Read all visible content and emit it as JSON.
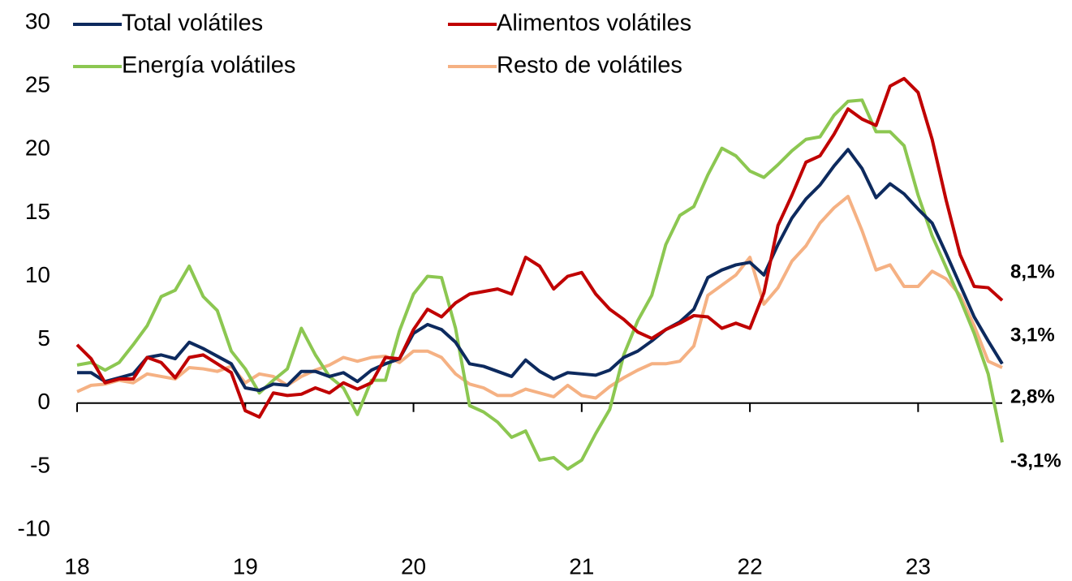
{
  "chart_data": {
    "type": "line",
    "categories": [
      "18",
      null,
      null,
      null,
      null,
      null,
      null,
      null,
      null,
      null,
      null,
      null,
      "19",
      null,
      null,
      null,
      null,
      null,
      null,
      null,
      null,
      null,
      null,
      null,
      "20",
      null,
      null,
      null,
      null,
      null,
      null,
      null,
      null,
      null,
      null,
      null,
      "21",
      null,
      null,
      null,
      null,
      null,
      null,
      null,
      null,
      null,
      null,
      null,
      "22",
      null,
      null,
      null,
      null,
      null,
      null,
      null,
      null,
      null,
      null,
      null,
      "23",
      null,
      null,
      null,
      null,
      null,
      null
    ],
    "ylim": [
      -10,
      30
    ],
    "yticks": [
      -10,
      -5,
      0,
      5,
      10,
      15,
      20,
      25,
      30
    ],
    "series": [
      {
        "name": "Total volátiles",
        "color": "#0d2a5e",
        "values": [
          2.4,
          2.4,
          1.7,
          2.0,
          2.3,
          3.6,
          3.8,
          3.5,
          4.8,
          4.3,
          3.7,
          3.1,
          1.2,
          1.0,
          1.5,
          1.4,
          2.5,
          2.5,
          2.1,
          2.4,
          1.7,
          2.6,
          3.1,
          3.5,
          5.5,
          6.2,
          5.8,
          4.8,
          3.1,
          2.9,
          2.5,
          2.1,
          3.4,
          2.5,
          1.9,
          2.4,
          2.3,
          2.2,
          2.6,
          3.6,
          4.1,
          4.9,
          5.8,
          6.4,
          7.4,
          9.9,
          10.5,
          10.9,
          11.1,
          10.1,
          12.5,
          14.6,
          16.1,
          17.2,
          18.7,
          20.0,
          18.5,
          16.2,
          17.3,
          16.5,
          15.3,
          14.2,
          11.8,
          9.3,
          6.8,
          4.9,
          3.1
        ],
        "value_labels": [
          null,
          null,
          null,
          null,
          null,
          null,
          null,
          null,
          null,
          null,
          null,
          null,
          null,
          null,
          null,
          null,
          null,
          null,
          null,
          null,
          null,
          null,
          null,
          null,
          null,
          null,
          null,
          null,
          null,
          null,
          null,
          null,
          null,
          null,
          null,
          null,
          null,
          null,
          null,
          null,
          null,
          null,
          null,
          null,
          null,
          null,
          null,
          null,
          null,
          null,
          null,
          null,
          null,
          null,
          null,
          null,
          null,
          null,
          null,
          null,
          null,
          null,
          null,
          null,
          null,
          null,
          "3,1%"
        ]
      },
      {
        "name": "Alimentos volátiles",
        "color": "#c00000",
        "values": [
          4.6,
          3.5,
          1.6,
          1.9,
          1.9,
          3.6,
          3.2,
          2.0,
          3.6,
          3.8,
          3.1,
          2.4,
          -0.6,
          -1.1,
          0.8,
          0.6,
          0.7,
          1.2,
          0.8,
          1.6,
          1.1,
          1.6,
          3.6,
          3.5,
          5.8,
          7.4,
          6.8,
          7.9,
          8.6,
          8.8,
          9.0,
          8.6,
          11.5,
          10.8,
          9.0,
          10.0,
          10.3,
          8.6,
          7.4,
          6.6,
          5.6,
          5.1,
          5.8,
          6.3,
          6.9,
          6.8,
          5.9,
          6.3,
          5.9,
          8.7,
          14.0,
          16.4,
          19.0,
          19.5,
          21.2,
          23.2,
          22.4,
          21.9,
          25.0,
          25.6,
          24.5,
          20.8,
          16.0,
          11.7,
          9.2,
          9.1,
          8.1
        ],
        "value_labels": [
          null,
          null,
          null,
          null,
          null,
          null,
          null,
          null,
          null,
          null,
          null,
          null,
          null,
          null,
          null,
          null,
          null,
          null,
          null,
          null,
          null,
          null,
          null,
          null,
          null,
          null,
          null,
          null,
          null,
          null,
          null,
          null,
          null,
          null,
          null,
          null,
          null,
          null,
          null,
          null,
          null,
          null,
          null,
          null,
          null,
          null,
          null,
          null,
          null,
          null,
          null,
          null,
          null,
          null,
          null,
          null,
          null,
          null,
          null,
          null,
          null,
          null,
          null,
          null,
          null,
          null,
          "8,1%"
        ]
      },
      {
        "name": "Energía volátiles",
        "color": "#8cc751",
        "values": [
          3.0,
          3.2,
          2.6,
          3.2,
          4.6,
          6.1,
          8.4,
          8.9,
          10.8,
          8.4,
          7.3,
          4.1,
          2.7,
          0.8,
          1.8,
          2.7,
          5.9,
          3.8,
          2.1,
          1.2,
          -0.9,
          1.8,
          1.8,
          5.7,
          8.6,
          10.0,
          9.9,
          5.9,
          -0.2,
          -0.7,
          -1.5,
          -2.7,
          -2.2,
          -4.5,
          -4.3,
          -5.2,
          -4.5,
          -2.4,
          -0.5,
          3.8,
          6.5,
          8.5,
          12.5,
          14.8,
          15.5,
          18.0,
          20.1,
          19.5,
          18.3,
          17.8,
          18.8,
          19.9,
          20.8,
          21.0,
          22.7,
          23.8,
          23.9,
          21.4,
          21.4,
          20.3,
          16.4,
          13.2,
          10.7,
          8.2,
          5.5,
          2.3,
          -3.1
        ],
        "value_labels": [
          null,
          null,
          null,
          null,
          null,
          null,
          null,
          null,
          null,
          null,
          null,
          null,
          null,
          null,
          null,
          null,
          null,
          null,
          null,
          null,
          null,
          null,
          null,
          null,
          null,
          null,
          null,
          null,
          null,
          null,
          null,
          null,
          null,
          null,
          null,
          null,
          null,
          null,
          null,
          null,
          null,
          null,
          null,
          null,
          null,
          null,
          null,
          null,
          null,
          null,
          null,
          null,
          null,
          null,
          null,
          null,
          null,
          null,
          null,
          null,
          null,
          null,
          null,
          null,
          null,
          null,
          "-3,1%"
        ]
      },
      {
        "name": "Resto de volátiles",
        "color": "#f5b183",
        "values": [
          0.9,
          1.4,
          1.5,
          1.8,
          1.6,
          2.3,
          2.1,
          1.9,
          2.8,
          2.7,
          2.5,
          2.9,
          1.6,
          2.3,
          2.1,
          1.4,
          2.1,
          2.6,
          3.0,
          3.6,
          3.3,
          3.6,
          3.7,
          3.2,
          4.1,
          4.1,
          3.6,
          2.3,
          1.5,
          1.2,
          0.6,
          0.6,
          1.1,
          0.8,
          0.5,
          1.4,
          0.6,
          0.4,
          1.3,
          2.0,
          2.6,
          3.1,
          3.1,
          3.3,
          4.5,
          8.5,
          9.3,
          10.1,
          11.5,
          7.8,
          9.1,
          11.2,
          12.4,
          14.2,
          15.4,
          16.3,
          13.6,
          10.5,
          10.9,
          9.2,
          9.2,
          10.4,
          9.8,
          8.5,
          6.1,
          3.3,
          2.8
        ],
        "value_labels": [
          null,
          null,
          null,
          null,
          null,
          null,
          null,
          null,
          null,
          null,
          null,
          null,
          null,
          null,
          null,
          null,
          null,
          null,
          null,
          null,
          null,
          null,
          null,
          null,
          null,
          null,
          null,
          null,
          null,
          null,
          null,
          null,
          null,
          null,
          null,
          null,
          null,
          null,
          null,
          null,
          null,
          null,
          null,
          null,
          null,
          null,
          null,
          null,
          null,
          null,
          null,
          null,
          null,
          null,
          null,
          null,
          null,
          null,
          null,
          null,
          null,
          null,
          null,
          null,
          null,
          null,
          "2,8%"
        ]
      }
    ]
  }
}
